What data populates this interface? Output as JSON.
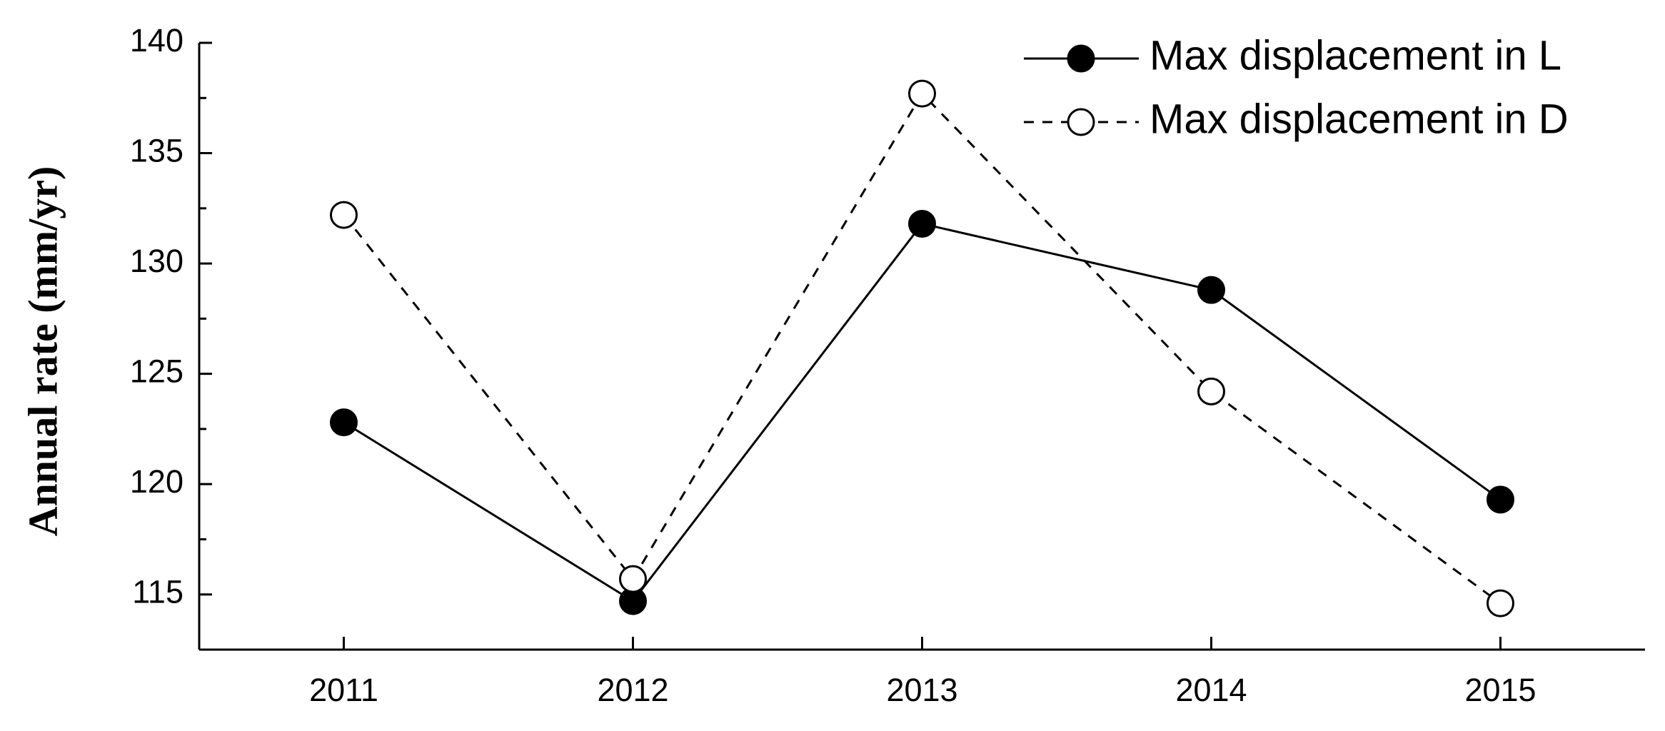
{
  "chart_data": {
    "type": "line",
    "y_label": "Annual rate (mm/yr)",
    "x": [
      2011,
      2012,
      2013,
      2014,
      2015
    ],
    "series": [
      {
        "name": "Max displacement in L",
        "color": "#000000",
        "linestyle": "solid",
        "marker_face": "filled",
        "values": [
          122.8,
          114.7,
          131.8,
          128.8,
          119.3
        ]
      },
      {
        "name": "Max displacement in D",
        "color": "#000000",
        "linestyle": "dashed",
        "marker_face": "open",
        "values": [
          132.2,
          115.7,
          137.7,
          124.2,
          114.6
        ]
      }
    ],
    "xlim": [
      2010.5,
      2015.5
    ],
    "xticks": [
      2011,
      2012,
      2013,
      2014,
      2015
    ],
    "ylim": [
      112.5,
      140
    ],
    "yticks": [
      115,
      120,
      125,
      130,
      135,
      140
    ],
    "minor_yticks": true,
    "grid": false,
    "legend": "upper right"
  }
}
